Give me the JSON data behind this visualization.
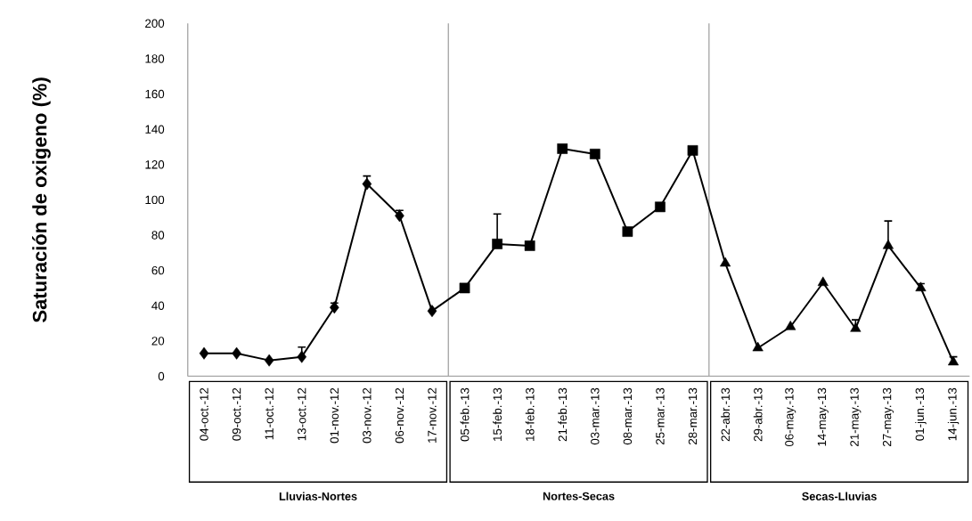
{
  "chart_data": {
    "type": "line",
    "ylabel": "Saturación de oxigeno (%)",
    "categories": [
      "04-oct.-12",
      "09-oct.-12",
      "11-oct.-12",
      "13-oct.-12",
      "01-nov.-12",
      "03-nov.-12",
      "06-nov.-12",
      "17-nov.-12",
      "05-feb.-13",
      "15-feb.-13",
      "18-feb.-13",
      "21-feb.-13",
      "03-mar.-13",
      "08-mar.-13",
      "25-mar.-13",
      "28-mar.-13",
      "22-abr.-13",
      "29-abr.-13",
      "06-may.-13",
      "14-may.-13",
      "21-may.-13",
      "27-may.-13",
      "01-jun.-13",
      "14-jun.-13"
    ],
    "series": [
      {
        "color": "#000000",
        "marker": "none",
        "values": [
          13,
          13,
          9,
          11,
          39,
          109,
          91,
          37,
          50,
          75,
          74,
          129,
          126,
          82,
          96,
          128,
          64,
          16,
          28,
          53,
          27,
          74,
          50,
          8
        ]
      },
      {
        "type": "scatter",
        "color": "#000000",
        "marker": "diamond",
        "values": [
          13,
          13,
          9,
          11,
          39,
          109,
          91,
          37,
          null,
          null,
          null,
          null,
          null,
          null,
          null,
          null,
          null,
          null,
          null,
          null,
          null,
          null,
          null,
          null
        ],
        "errors": [
          null,
          null,
          null,
          [
            11,
            16.5
          ],
          [
            39,
            41.5
          ],
          [
            109,
            113.5
          ],
          [
            91,
            94
          ],
          null,
          null,
          null,
          null,
          null,
          null,
          null,
          null,
          null,
          null,
          null,
          null,
          null,
          null,
          null,
          null,
          null
        ]
      },
      {
        "type": "scatter",
        "color": "#000000",
        "marker": "square",
        "values": [
          null,
          null,
          null,
          null,
          null,
          null,
          null,
          null,
          50,
          75,
          74,
          129,
          126,
          82,
          96,
          128,
          null,
          null,
          null,
          null,
          null,
          null,
          null,
          null
        ],
        "errors": [
          null,
          null,
          null,
          null,
          null,
          null,
          null,
          null,
          null,
          [
            75,
            92
          ],
          null,
          null,
          null,
          null,
          null,
          null,
          null,
          null,
          null,
          null,
          null,
          null,
          null,
          null
        ]
      },
      {
        "type": "scatter",
        "color": "#000000",
        "marker": "triangle",
        "values": [
          null,
          null,
          null,
          null,
          null,
          null,
          null,
          null,
          null,
          null,
          null,
          null,
          null,
          null,
          null,
          null,
          64,
          16,
          28,
          53,
          27,
          74,
          50,
          8
        ],
        "errors": [
          null,
          null,
          null,
          null,
          null,
          null,
          null,
          null,
          null,
          null,
          null,
          null,
          null,
          null,
          null,
          null,
          null,
          null,
          null,
          null,
          [
            27,
            32
          ],
          [
            74,
            88
          ],
          [
            50,
            52.5
          ],
          [
            8,
            11
          ]
        ]
      }
    ],
    "ylim": [
      0,
      200
    ],
    "yticks": [
      0,
      20,
      40,
      60,
      80,
      100,
      120,
      140,
      160,
      180,
      200
    ],
    "line_style": "solid",
    "annotations": [
      "Lluvias-Nortes",
      "Nortes-Secas",
      "Secas-Lluvias"
    ]
  }
}
